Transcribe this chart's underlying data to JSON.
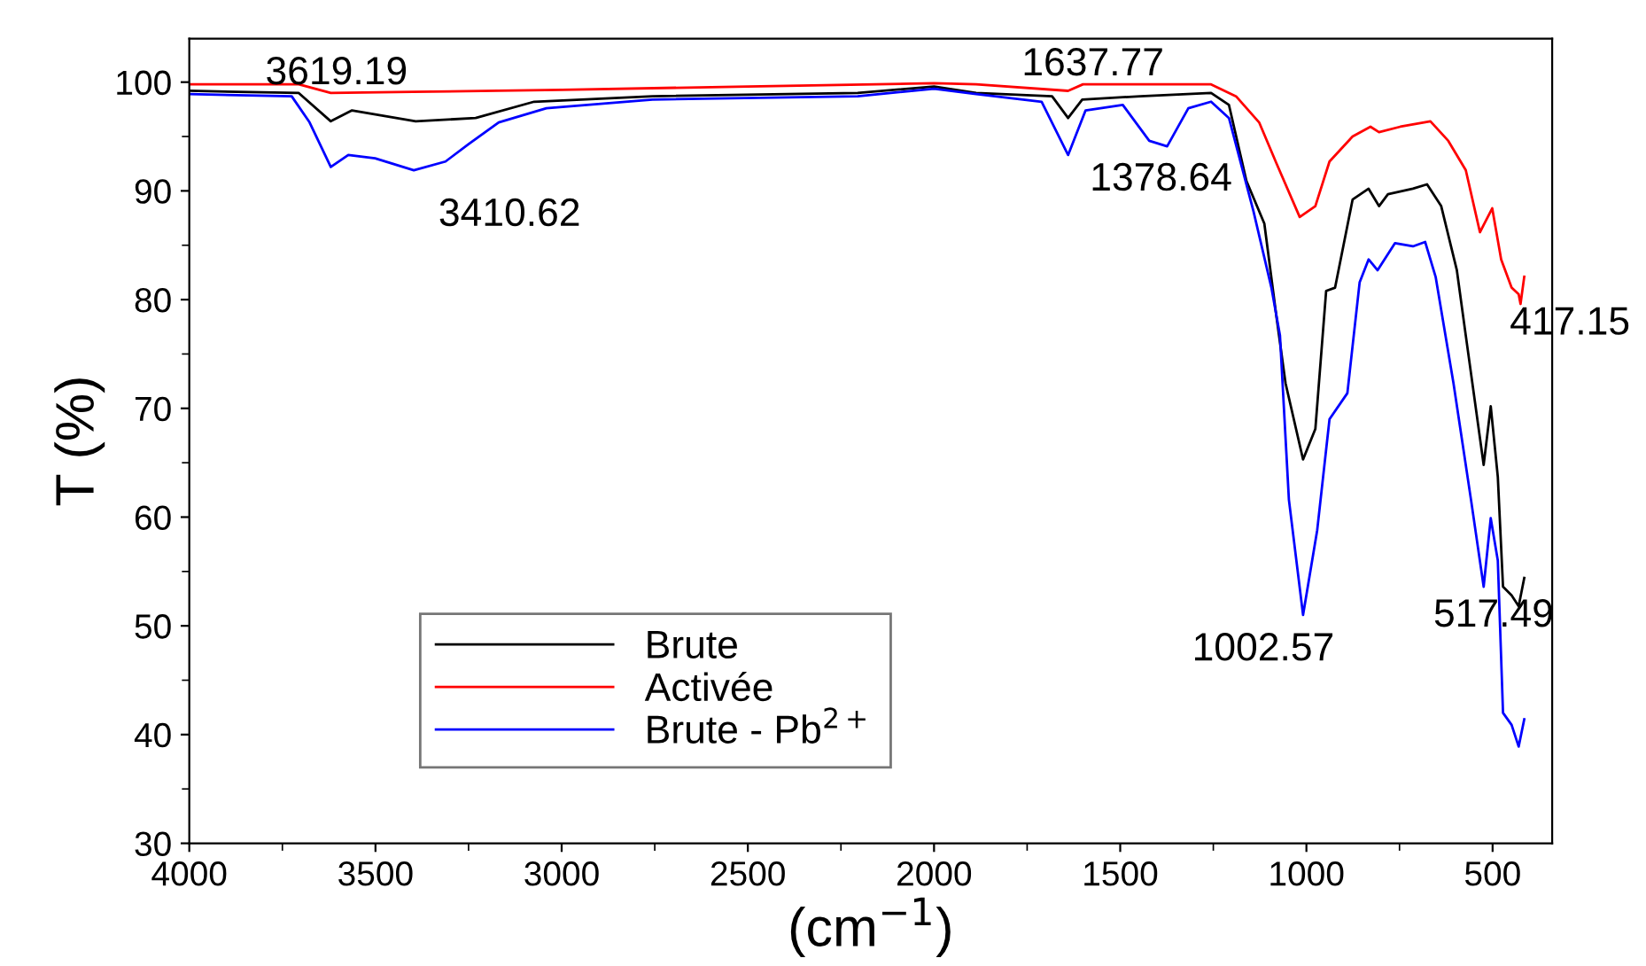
{
  "chart_data": {
    "type": "line",
    "xlabel": "(cm$^{−1}$)",
    "ylabel": "T (%)",
    "xlim": [
      4000,
      340
    ],
    "xticks": [
      4000,
      3500,
      3000,
      2500,
      2000,
      1500,
      1000,
      500
    ],
    "ylim": [
      30,
      104
    ],
    "yticks": [
      30,
      40,
      50,
      60,
      70,
      80,
      90,
      100
    ],
    "grid": false,
    "legend": "bottom left",
    "marker": "none",
    "line_style": "solid",
    "series": [
      {
        "name": "Brute",
        "color": "#000000",
        "x": [
          4000,
          3706,
          3620,
          3563,
          3392,
          3231,
          3074,
          2756,
          2205,
          2000,
          1887,
          1683,
          1640,
          1602,
          1446,
          1256,
          1208,
          1161,
          1113,
          1080,
          1056,
          1009,
          976,
          947,
          923,
          876,
          833,
          805,
          781,
          714,
          676,
          638,
          596,
          572,
          524,
          505,
          486,
          472,
          449,
          430,
          415
        ],
        "values": [
          99.2,
          99.0,
          96.4,
          97.4,
          96.4,
          96.7,
          98.2,
          98.7,
          99.0,
          99.6,
          99.0,
          98.7,
          96.7,
          98.4,
          98.7,
          99.0,
          97.9,
          90.9,
          87.0,
          78.3,
          72.3,
          65.3,
          68.1,
          80.8,
          81.1,
          89.2,
          90.2,
          88.6,
          89.7,
          90.2,
          90.6,
          88.6,
          82.7,
          76.7,
          64.8,
          70.2,
          63.7,
          53.6,
          52.8,
          51.8,
          54.4
        ]
      },
      {
        "name": "Activée",
        "color": "#ff0000",
        "x": [
          4000,
          3706,
          3620,
          3400,
          3000,
          2500,
          2000,
          1887,
          1640,
          1600,
          1256,
          1189,
          1127,
          1080,
          1018,
          976,
          938,
          876,
          828,
          805,
          748,
          667,
          619,
          572,
          534,
          501,
          477,
          449,
          430,
          425,
          415
        ],
        "values": [
          99.8,
          99.8,
          99.0,
          99.1,
          99.3,
          99.6,
          99.9,
          99.8,
          99.2,
          99.8,
          99.8,
          98.7,
          96.3,
          92.5,
          87.6,
          88.6,
          92.7,
          95.0,
          95.9,
          95.4,
          95.9,
          96.4,
          94.6,
          91.9,
          86.2,
          88.4,
          83.7,
          81.1,
          80.5,
          79.6,
          82.1
        ]
      },
      {
        "name": "Brute - Pb$^{2+}$",
        "color": "#0000ff",
        "x": [
          4000,
          3725,
          3677,
          3620,
          3573,
          3501,
          3397,
          3312,
          3250,
          3169,
          3041,
          2756,
          2205,
          2000,
          1887,
          1711,
          1640,
          1593,
          1493,
          1422,
          1374,
          1317,
          1256,
          1208,
          1142,
          1094,
          1071,
          1047,
          1009,
          971,
          938,
          890,
          857,
          833,
          809,
          762,
          714,
          681,
          653,
          605,
          558,
          524,
          505,
          486,
          472,
          449,
          430,
          415
        ],
        "values": [
          98.9,
          98.7,
          96.3,
          92.2,
          93.3,
          93.0,
          91.9,
          92.7,
          94.3,
          96.3,
          97.6,
          98.4,
          98.7,
          99.4,
          98.9,
          98.2,
          93.3,
          97.4,
          97.9,
          94.6,
          94.1,
          97.6,
          98.2,
          96.7,
          88.1,
          81.1,
          76.7,
          61.6,
          51.0,
          58.8,
          69.0,
          71.4,
          81.6,
          83.7,
          82.7,
          85.2,
          84.9,
          85.3,
          82.1,
          72.3,
          61.6,
          53.6,
          59.9,
          56.0,
          42.0,
          40.9,
          38.9,
          41.4
        ]
      }
    ],
    "annotations": [
      "3619.19",
      "3410.62",
      "1637.77",
      "1378.64",
      "1002.57",
      "517.49",
      "417.15"
    ]
  }
}
